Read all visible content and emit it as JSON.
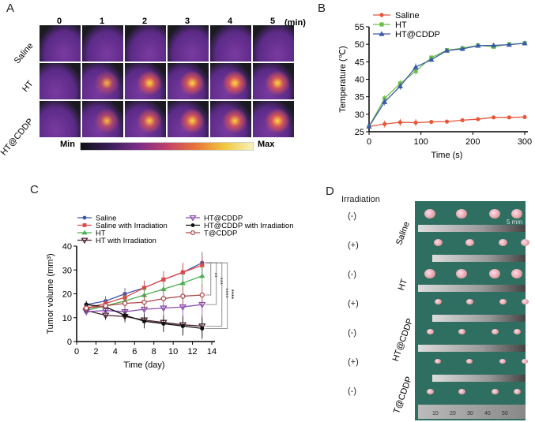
{
  "panels": {
    "a": "A",
    "b": "B",
    "c": "C",
    "d": "D"
  },
  "panel_a": {
    "time_labels": [
      "0",
      "1",
      "2",
      "3",
      "4",
      "5"
    ],
    "time_unit": "(min)",
    "rows": [
      "Saline",
      "HT",
      "HT@CDDP"
    ],
    "colorbar": {
      "min": "Min",
      "max": "Max"
    },
    "hotspot_intensity": [
      [
        0,
        0,
        0,
        0,
        0,
        0
      ],
      [
        0,
        0.5,
        0.8,
        0.8,
        0.85,
        0.8
      ],
      [
        0,
        0.55,
        0.7,
        0.8,
        0.75,
        0.85
      ]
    ]
  },
  "chart_data": [
    {
      "type": "line",
      "xlabel": "Time (s)",
      "ylabel": "Temperature (℃)",
      "xlim": [
        0,
        300
      ],
      "ylim": [
        25,
        55
      ],
      "xticks": [
        "0",
        "100",
        "200",
        "300"
      ],
      "yticks": [
        "25",
        "30",
        "35",
        "40",
        "45",
        "50",
        "55"
      ],
      "legend": "top-left",
      "x": [
        0,
        30,
        60,
        90,
        120,
        150,
        180,
        210,
        240,
        270,
        300
      ],
      "series": [
        {
          "name": "Saline",
          "color": "#e8563a",
          "marker": "circle",
          "values": [
            26.5,
            27.2,
            27.7,
            27.6,
            27.8,
            27.9,
            28.3,
            28.6,
            29.1,
            29.1,
            29.2
          ]
        },
        {
          "name": "HT",
          "color": "#6dbf4b",
          "marker": "square",
          "values": [
            26.5,
            34.5,
            38.8,
            42.3,
            46.2,
            48.3,
            48.9,
            49.7,
            49.3,
            50.0,
            50.3
          ]
        },
        {
          "name": "HT@CDDP",
          "color": "#3a5aa8",
          "marker": "triangle",
          "values": [
            26.5,
            33.5,
            38.0,
            43.5,
            45.6,
            48.2,
            48.7,
            49.6,
            49.7,
            49.9,
            50.3
          ]
        }
      ]
    },
    {
      "type": "line",
      "xlabel": "Time (day)",
      "ylabel": "Tumor volume  (mm³)",
      "xlim": [
        0,
        14
      ],
      "ylim": [
        0,
        40
      ],
      "xticks": [
        "0",
        "2",
        "4",
        "6",
        "8",
        "10",
        "12",
        "14"
      ],
      "yticks": [
        "0",
        "10",
        "20",
        "30",
        "40"
      ],
      "legend": "top",
      "x": [
        1,
        3,
        5,
        7,
        9,
        11,
        13
      ],
      "series": [
        {
          "name": "Saline",
          "color": "#3a55a8",
          "marker": "circle",
          "values": [
            15.5,
            17,
            20,
            22.5,
            26,
            29,
            33
          ]
        },
        {
          "name": "Saline with Irradiation",
          "color": "#e04848",
          "marker": "square",
          "values": [
            14,
            16,
            18.5,
            22.5,
            26,
            29,
            32
          ]
        },
        {
          "name": "HT",
          "color": "#4caf50",
          "marker": "triangle",
          "values": [
            13,
            15,
            17,
            19.5,
            22,
            24.5,
            27.5
          ]
        },
        {
          "name": "HT with Irradiation",
          "color": "#4a2030",
          "marker": "triangle-down",
          "values": [
            13,
            11,
            10.5,
            9,
            8,
            7,
            6.5
          ]
        },
        {
          "name": "HT@CDDP",
          "color": "#8a4fb0",
          "marker": "triangle-down",
          "values": [
            12.5,
            13,
            12.5,
            13.5,
            14,
            14.5,
            15.5
          ]
        },
        {
          "name": "HT@CDDP with Irradiation",
          "color": "#111111",
          "marker": "circle",
          "values": [
            15.5,
            14.5,
            11,
            8.5,
            7.5,
            6.5,
            5.5
          ]
        },
        {
          "name": "T@CDDP",
          "color": "#b04a4a",
          "marker": "diamond",
          "values": [
            14,
            15,
            16,
            16.5,
            18,
            19,
            19.5
          ]
        }
      ],
      "significance": [
        "**",
        "***",
        "****",
        "****"
      ]
    }
  ],
  "panel_d": {
    "irradiation_header": "Irradiation",
    "states": [
      "(-)",
      "(+)",
      "(-)",
      "(+)",
      "(-)",
      "(+)",
      "(-)"
    ],
    "groups": [
      "Saline",
      "HT",
      "HT@CDDP",
      "T@CDDP"
    ],
    "scale_bar": "5 mm",
    "ruler_numbers": [
      "10",
      "20",
      "30",
      "40",
      "50"
    ]
  }
}
